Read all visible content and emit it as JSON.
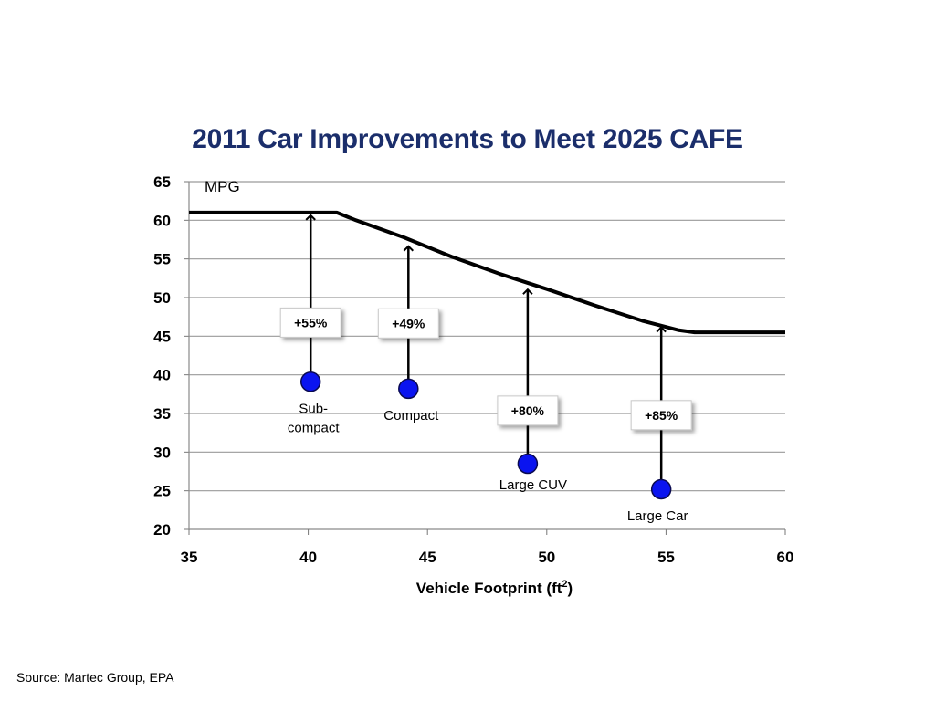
{
  "chart_data": {
    "type": "line",
    "title": "2011 Car Improvements to Meet 2025 CAFE",
    "ylabel": "MPG",
    "xlabel_main": "Vehicle Footprint (ft",
    "xlabel_sup": "2",
    "xlabel_close": ")",
    "xlim": [
      35,
      60
    ],
    "ylim": [
      20,
      65
    ],
    "x_ticks": [
      35,
      40,
      45,
      50,
      55,
      60
    ],
    "y_ticks": [
      20,
      25,
      30,
      35,
      40,
      45,
      50,
      55,
      60,
      65
    ],
    "grid": "horizontal",
    "target_curve": {
      "x": [
        35,
        40.5,
        41.2,
        42,
        44,
        46,
        48,
        50,
        52,
        54,
        55.5,
        56.2,
        60
      ],
      "y": [
        61,
        61,
        61,
        60,
        57.8,
        55.3,
        53.1,
        51.1,
        49,
        47,
        45.8,
        45.5,
        45.5
      ]
    },
    "vehicles": [
      {
        "label": "Sub-",
        "label2": "compact",
        "x": 40.1,
        "y": 39.1,
        "target": 61.0,
        "improvement": "+55%"
      },
      {
        "label": "Compact",
        "label2": "",
        "x": 44.2,
        "y": 38.2,
        "target": 57.0,
        "improvement": "+49%"
      },
      {
        "label": "Large CUV",
        "label2": "",
        "x": 49.2,
        "y": 28.5,
        "target": 51.4,
        "improvement": "+80%"
      },
      {
        "label": "Large Car",
        "label2": "",
        "x": 54.8,
        "y": 25.2,
        "target": 46.5,
        "improvement": "+85%"
      }
    ],
    "colors": {
      "title": "#1b2e6b",
      "marker": "#0a14f0",
      "marker_stroke": "#0a0a50",
      "grid": "#9a9a9a",
      "curve": "#000000"
    }
  },
  "source": "Source: Martec Group, EPA"
}
